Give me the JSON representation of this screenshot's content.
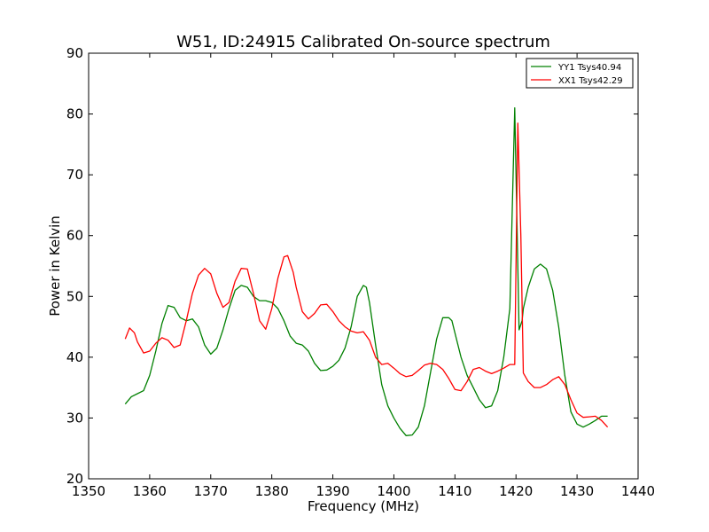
{
  "chart_data": {
    "type": "line",
    "title": "W51, ID:24915 Calibrated On-source spectrum",
    "xlabel": "Frequency (MHz)",
    "ylabel": "Power in Kelvin",
    "xlim": [
      1350,
      1440
    ],
    "ylim": [
      20,
      90
    ],
    "xticks": [
      1350,
      1360,
      1370,
      1380,
      1390,
      1400,
      1410,
      1420,
      1430,
      1440
    ],
    "yticks": [
      20,
      30,
      40,
      50,
      60,
      70,
      80,
      90
    ],
    "grid": false,
    "legend_position": "top-right",
    "series": [
      {
        "name": "YY1 Tsys40.94",
        "color": "#008000",
        "x": [
          1356,
          1357,
          1358,
          1359,
          1360,
          1361,
          1362,
          1363,
          1364,
          1365,
          1366,
          1367,
          1368,
          1369,
          1370,
          1371,
          1372,
          1373,
          1374,
          1375,
          1376,
          1377,
          1378,
          1379,
          1380,
          1381,
          1382,
          1383,
          1384,
          1385,
          1386,
          1387,
          1388,
          1389,
          1390,
          1391,
          1392,
          1393,
          1394,
          1395,
          1395.5,
          1396,
          1397,
          1398,
          1399,
          1400,
          1401,
          1402,
          1403,
          1404,
          1405,
          1406,
          1407,
          1408,
          1409,
          1409.5,
          1410,
          1411,
          1412,
          1413,
          1414,
          1415,
          1416,
          1417,
          1418,
          1419,
          1419.8,
          1420.2,
          1420.5,
          1421,
          1421.2,
          1422,
          1423,
          1424,
          1425,
          1426,
          1427,
          1428,
          1429,
          1430,
          1431,
          1432,
          1433,
          1434,
          1435
        ],
        "y": [
          32.3,
          33.5,
          34,
          34.5,
          37,
          41,
          45.5,
          48.5,
          48.2,
          46.5,
          46,
          46.3,
          45,
          42,
          40.5,
          41.5,
          44.5,
          48,
          51,
          51.8,
          51.5,
          50,
          49.3,
          49.3,
          49,
          48,
          46,
          43.5,
          42.3,
          42,
          41,
          39,
          37.8,
          37.9,
          38.5,
          39.5,
          41.5,
          45,
          50,
          51.8,
          51.5,
          49,
          42,
          35.5,
          32,
          30,
          28.3,
          27.1,
          27.2,
          28.5,
          32,
          37.5,
          43,
          46.5,
          46.5,
          46,
          44,
          40,
          37,
          35,
          33,
          31.7,
          32,
          34.5,
          40,
          48,
          81,
          60,
          44.5,
          46,
          48,
          51.5,
          54.5,
          55.3,
          54.5,
          51,
          45,
          37,
          31,
          29,
          28.5,
          29,
          29.6,
          30.3,
          30.3
        ]
      },
      {
        "name": "XX1 Tsys42.29",
        "color": "#ff0000",
        "x": [
          1356,
          1356.7,
          1357.5,
          1358,
          1359,
          1360,
          1361,
          1362,
          1363,
          1364,
          1365,
          1366,
          1367,
          1368,
          1369,
          1370,
          1371,
          1372,
          1373,
          1374,
          1375,
          1376,
          1377,
          1378,
          1379,
          1380,
          1381,
          1382,
          1382.6,
          1383.5,
          1384,
          1385,
          1386,
          1387,
          1388,
          1389,
          1390,
          1391,
          1392,
          1393,
          1394,
          1395,
          1396,
          1397,
          1398,
          1399,
          1400,
          1401,
          1402,
          1403,
          1404,
          1405,
          1406,
          1407,
          1408,
          1409,
          1410,
          1411,
          1412,
          1413,
          1414,
          1415,
          1416,
          1417,
          1418,
          1419,
          1419.8,
          1420.3,
          1420.8,
          1421.2,
          1422,
          1423,
          1424,
          1425,
          1426,
          1427,
          1428,
          1429,
          1430,
          1431,
          1432,
          1433,
          1434,
          1435
        ],
        "y": [
          43,
          44.8,
          44,
          42.5,
          40.7,
          41,
          42.3,
          43.2,
          42.8,
          41.6,
          42,
          46,
          50.5,
          53.5,
          54.6,
          53.7,
          50.5,
          48.2,
          49,
          52.5,
          54.6,
          54.5,
          50.5,
          46,
          44.6,
          48,
          53,
          56.5,
          56.7,
          54,
          51.5,
          47.5,
          46.3,
          47.2,
          48.6,
          48.7,
          47.5,
          46,
          45,
          44.3,
          44,
          44.2,
          42.8,
          40,
          38.8,
          39,
          38.2,
          37.3,
          36.8,
          37,
          37.8,
          38.7,
          39,
          38.8,
          38,
          36.5,
          34.7,
          34.5,
          36,
          38,
          38.3,
          37.7,
          37.3,
          37.7,
          38.2,
          38.8,
          38.8,
          78.5,
          60,
          37.4,
          36,
          35,
          35,
          35.5,
          36.3,
          36.8,
          35.5,
          33,
          30.8,
          30.1,
          30.2,
          30.3,
          29.6,
          28.5
        ]
      }
    ]
  }
}
